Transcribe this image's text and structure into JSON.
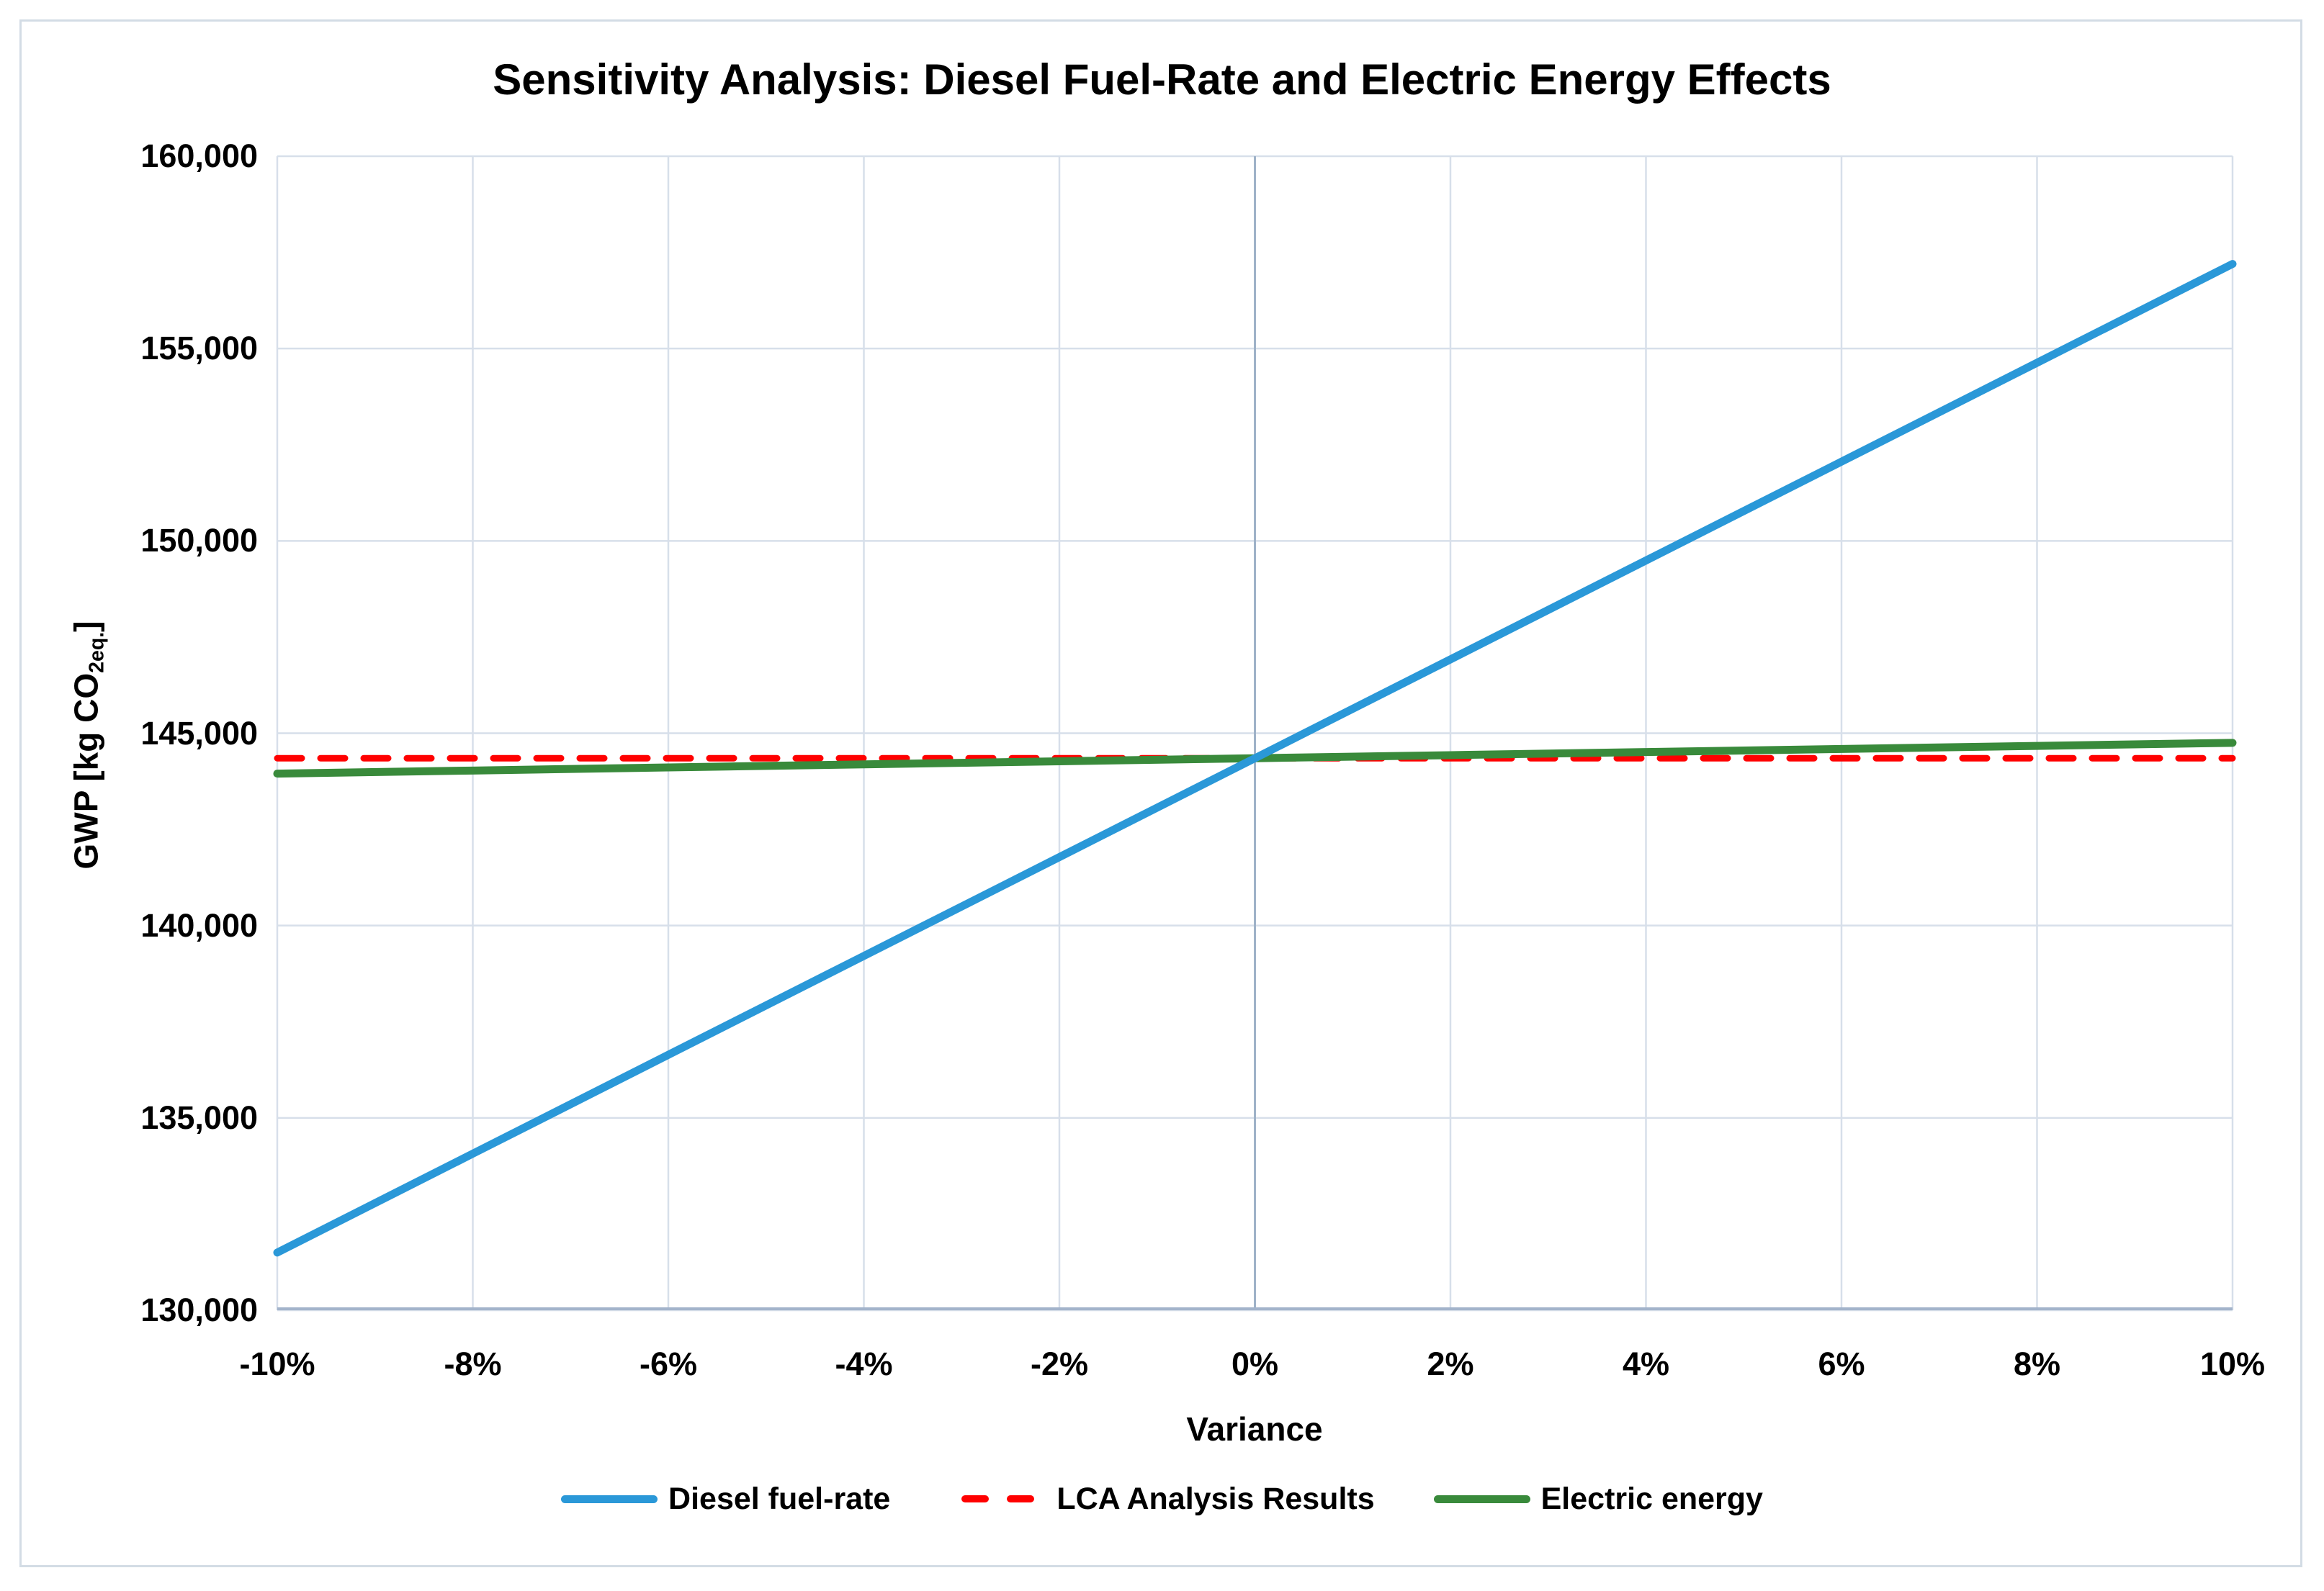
{
  "colors": {
    "diesel_blue": "#2A98D8",
    "lca_red": "#FF0000",
    "electric_green": "#398A3B",
    "gridline": "#D7DFEA",
    "zero_gridline": "#9FB2C8",
    "x_axis_line": "#A3B4CB",
    "frame_border": "#D3DCE5",
    "text": "#000000"
  },
  "chart_data": {
    "type": "line",
    "title": "Sensitivity Analysis: Diesel Fuel-Rate and Electric Energy Effects",
    "xlabel": "Variance",
    "ylabel_prefix": "GWP [kg CO",
    "ylabel_sub": "2eq.",
    "ylabel_suffix": "]",
    "xlim": [
      -10,
      10
    ],
    "ylim": [
      130000,
      160000
    ],
    "grid": true,
    "legend_position": "bottom",
    "x": [
      -10,
      -8,
      -6,
      -4,
      -2,
      0,
      2,
      4,
      6,
      8,
      10
    ],
    "x_tick_labels": [
      "-10%",
      "-8%",
      "-6%",
      "-4%",
      "-2%",
      "0%",
      "2%",
      "4%",
      "6%",
      "8%",
      "10%"
    ],
    "y_ticks": [
      130000,
      135000,
      140000,
      145000,
      150000,
      155000,
      160000
    ],
    "y_tick_labels": [
      "130,000",
      "135,000",
      "140,000",
      "145,000",
      "150,000",
      "155,000",
      "160,000"
    ],
    "series": [
      {
        "name": "Diesel fuel-rate",
        "style": "solid",
        "color": "#2A98D8",
        "width": 11,
        "z": 3,
        "values": [
          131500,
          134070,
          136640,
          139210,
          141780,
          144350,
          146920,
          149490,
          152060,
          154630,
          157200
        ]
      },
      {
        "name": "LCA Analysis Results",
        "style": "dashed",
        "color": "#FF0000",
        "width": 9,
        "z": 1,
        "values": [
          144350,
          144350,
          144350,
          144350,
          144350,
          144350,
          144350,
          144350,
          144350,
          144350,
          144350
        ]
      },
      {
        "name": "Electric energy",
        "style": "solid",
        "color": "#398A3B",
        "width": 11,
        "z": 2,
        "values": [
          143950,
          144030,
          144110,
          144190,
          144270,
          144350,
          144430,
          144510,
          144590,
          144670,
          144750
        ]
      }
    ]
  }
}
